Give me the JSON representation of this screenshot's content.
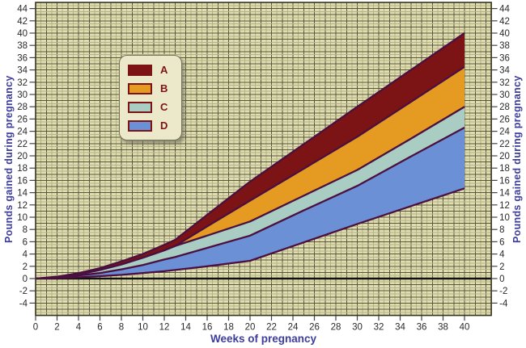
{
  "chart_data": {
    "type": "area",
    "title": "",
    "xlabel": "Weeks of pregnancy",
    "ylabel": "Pounds gained during pregnancy",
    "ylabel_right": "Pounds gained during pregnancy",
    "xlim": [
      0,
      42.5
    ],
    "ylim": [
      -6,
      45
    ],
    "x_ticks": [
      0,
      2,
      4,
      6,
      8,
      10,
      12,
      14,
      16,
      18,
      20,
      22,
      24,
      26,
      28,
      30,
      32,
      34,
      36,
      38,
      40
    ],
    "y_ticks": [
      -4,
      -2,
      0,
      2,
      4,
      6,
      8,
      10,
      12,
      14,
      16,
      18,
      20,
      22,
      24,
      26,
      28,
      30,
      32,
      34,
      36,
      38,
      40,
      42,
      44
    ],
    "grid": {
      "minor_step_weeks": 0.5,
      "major_step_weeks": 1,
      "minor_step_lbs": 0.5,
      "major_step_lbs": 1,
      "grid_on": true
    },
    "legend_position": "upper-left-inside",
    "legend": [
      {
        "label": "A",
        "color": "#7c1416"
      },
      {
        "label": "B",
        "color": "#e59a21"
      },
      {
        "label": "C",
        "color": "#a9cdc3"
      },
      {
        "label": "D",
        "color": "#6b90d6"
      }
    ],
    "bands": [
      {
        "name": "A",
        "upper": "L1",
        "lower": "L2",
        "color": "#7c1416"
      },
      {
        "name": "B",
        "upper": "L2",
        "lower": "L3",
        "color": "#e59a21"
      },
      {
        "name": "C",
        "upper": "L3",
        "lower": "L4",
        "color": "#a9cdc3"
      },
      {
        "name": "D",
        "upper": "L4",
        "lower": "L5",
        "color": "#6b90d6"
      }
    ],
    "boundaries": {
      "L1": [
        [
          0,
          0
        ],
        [
          2,
          0.3
        ],
        [
          4,
          0.9
        ],
        [
          6,
          1.7
        ],
        [
          8,
          2.8
        ],
        [
          10,
          4.0
        ],
        [
          12,
          5.5
        ],
        [
          13,
          6.3
        ],
        [
          16,
          10.4
        ],
        [
          20,
          15.8
        ],
        [
          25,
          21.9
        ],
        [
          30,
          28.0
        ],
        [
          35,
          34.0
        ],
        [
          40,
          40.0
        ]
      ],
      "L2": [
        [
          0,
          0
        ],
        [
          2,
          0.2
        ],
        [
          4,
          0.7
        ],
        [
          6,
          1.4
        ],
        [
          8,
          2.3
        ],
        [
          10,
          3.4
        ],
        [
          12,
          4.6
        ],
        [
          13,
          5.3
        ],
        [
          16,
          8.5
        ],
        [
          20,
          12.7
        ],
        [
          25,
          17.9
        ],
        [
          30,
          23.1
        ],
        [
          35,
          28.8
        ],
        [
          40,
          34.5
        ]
      ],
      "L3": [
        [
          0,
          0
        ],
        [
          2,
          0.2
        ],
        [
          4,
          0.7
        ],
        [
          6,
          1.4
        ],
        [
          8,
          2.3
        ],
        [
          10,
          3.4
        ],
        [
          12,
          4.6
        ],
        [
          13,
          5.3
        ],
        [
          16,
          7.0
        ],
        [
          20,
          9.3
        ],
        [
          25,
          13.5
        ],
        [
          30,
          17.7
        ],
        [
          35,
          22.8
        ],
        [
          40,
          28.0
        ]
      ],
      "L4": [
        [
          0,
          0
        ],
        [
          2,
          0.15
        ],
        [
          4,
          0.5
        ],
        [
          6,
          0.9
        ],
        [
          8,
          1.5
        ],
        [
          10,
          2.2
        ],
        [
          12,
          3.1
        ],
        [
          13,
          3.5
        ],
        [
          16,
          5.0
        ],
        [
          20,
          7.0
        ],
        [
          25,
          11.1
        ],
        [
          30,
          15.1
        ],
        [
          35,
          19.9
        ],
        [
          40,
          24.6
        ]
      ],
      "L5": [
        [
          0,
          0
        ],
        [
          2,
          0.06
        ],
        [
          4,
          0.2
        ],
        [
          6,
          0.4
        ],
        [
          8,
          0.6
        ],
        [
          10,
          0.9
        ],
        [
          12,
          1.2
        ],
        [
          13,
          1.4
        ],
        [
          16,
          2.0
        ],
        [
          20,
          2.9
        ],
        [
          25,
          5.9
        ],
        [
          30,
          8.9
        ],
        [
          35,
          11.8
        ],
        [
          40,
          14.7
        ]
      ]
    },
    "band_outline_color": "#4b1040",
    "zero_line_value": 0
  },
  "styles": {
    "plot_bg": "#e0deae",
    "grid_minor": "#b3b188",
    "grid_major": "#585641",
    "plot_border": "#33331f",
    "zero_line": "#111111",
    "axis_title_color": "#3d3d9e",
    "tick_label_color": "#2a2a2a",
    "tick_mark_color": "#444444",
    "legend_bg": "#ece9cb",
    "legend_label_color": "#7c1416",
    "swatch_border": "#7c1416"
  }
}
